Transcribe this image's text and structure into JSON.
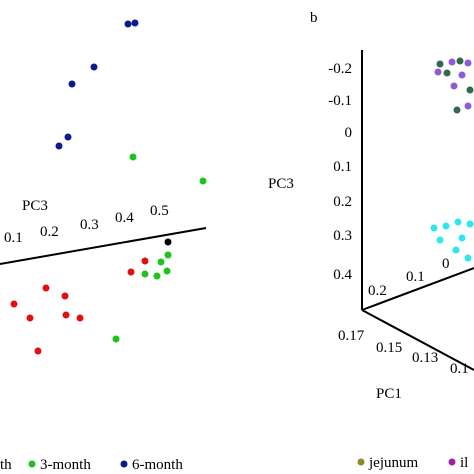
{
  "panel_a": {
    "axis_label": "PC3",
    "tick_labels": [
      "0.1",
      "0.2",
      "0.3",
      "0.4",
      "0.5"
    ],
    "legend": [
      "th",
      "3-month",
      "6-month"
    ]
  },
  "panel_b": {
    "panel_label": "b",
    "z_axis_label": "PC3",
    "z_tick_labels": [
      "-0.2",
      "-0.1",
      "0",
      "0.1",
      "0.2",
      "0.3",
      "0.4"
    ],
    "y_tick_labels": [
      "0.2",
      "0.1",
      "0"
    ],
    "x_tick_labels": [
      "0.17",
      "0.15",
      "0.13",
      "0.1"
    ],
    "x_axis_label": "PC1",
    "legend": [
      "jejunum",
      "il"
    ]
  }
}
